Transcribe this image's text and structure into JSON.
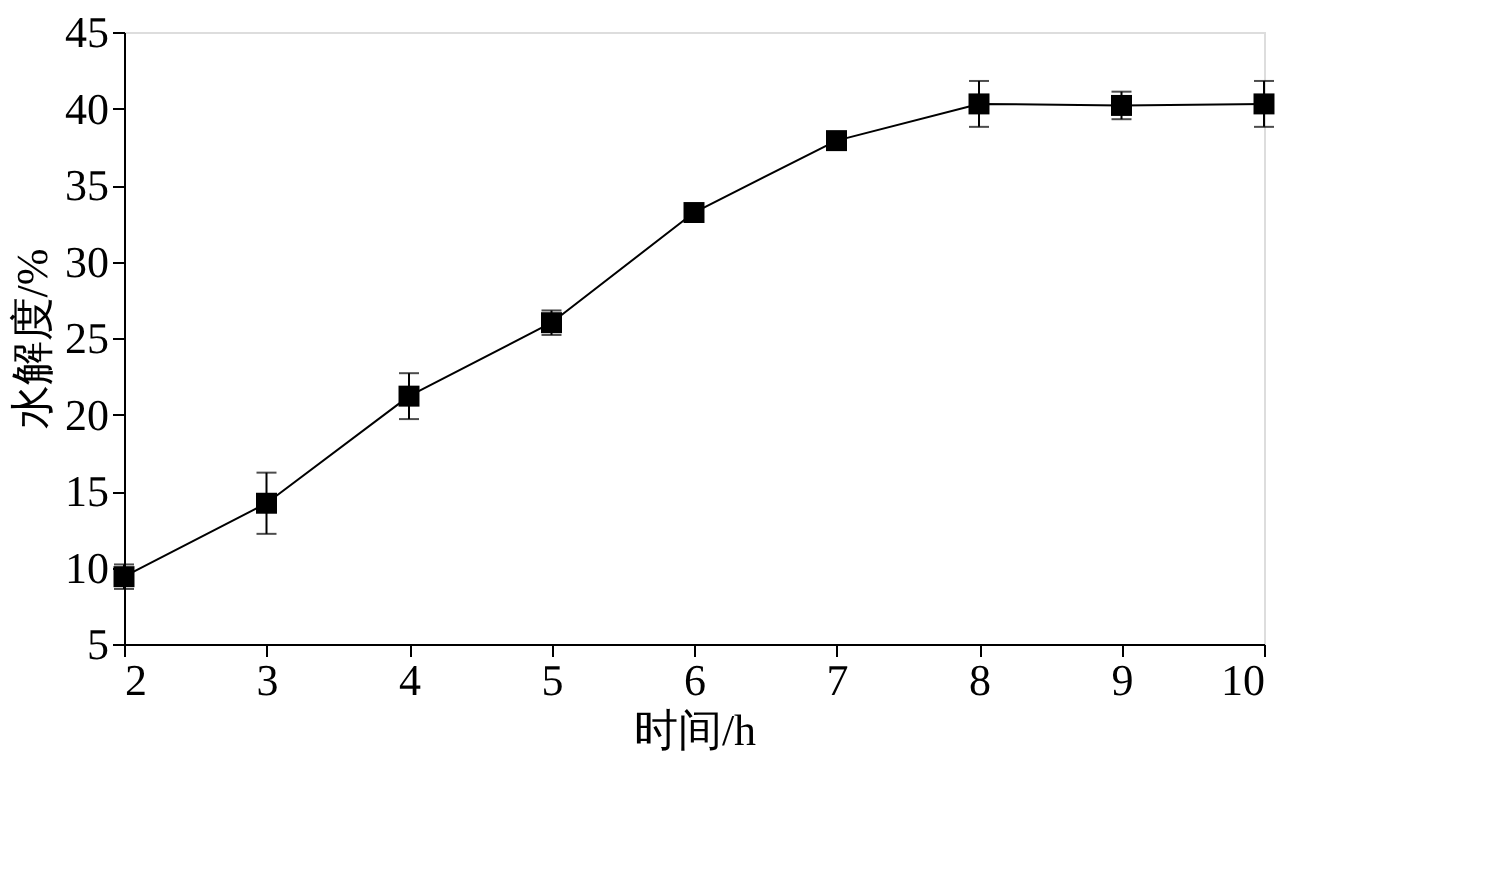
{
  "chart_data": {
    "type": "line",
    "xlabel": "时间/h",
    "ylabel": "水解度/%",
    "x": [
      2,
      3,
      4,
      5,
      6,
      7,
      8,
      9,
      10
    ],
    "series": [
      {
        "color": "#000000",
        "values": [
          9.4,
          14.2,
          21.2,
          26.0,
          33.2,
          37.9,
          40.3,
          40.2,
          40.3
        ],
        "errors": [
          0.8,
          2.0,
          1.5,
          0.8,
          0.5,
          0.3,
          1.5,
          0.9,
          1.5
        ]
      }
    ],
    "xlim": [
      2,
      10
    ],
    "xticks": [
      2,
      3,
      4,
      5,
      6,
      7,
      8,
      9,
      10
    ],
    "ylim": [
      5,
      45
    ],
    "yticks": [
      5,
      10,
      15,
      20,
      25,
      30,
      35,
      40,
      45
    ],
    "marker": "square",
    "line_style": "solid",
    "grid": false,
    "legend": false
  }
}
